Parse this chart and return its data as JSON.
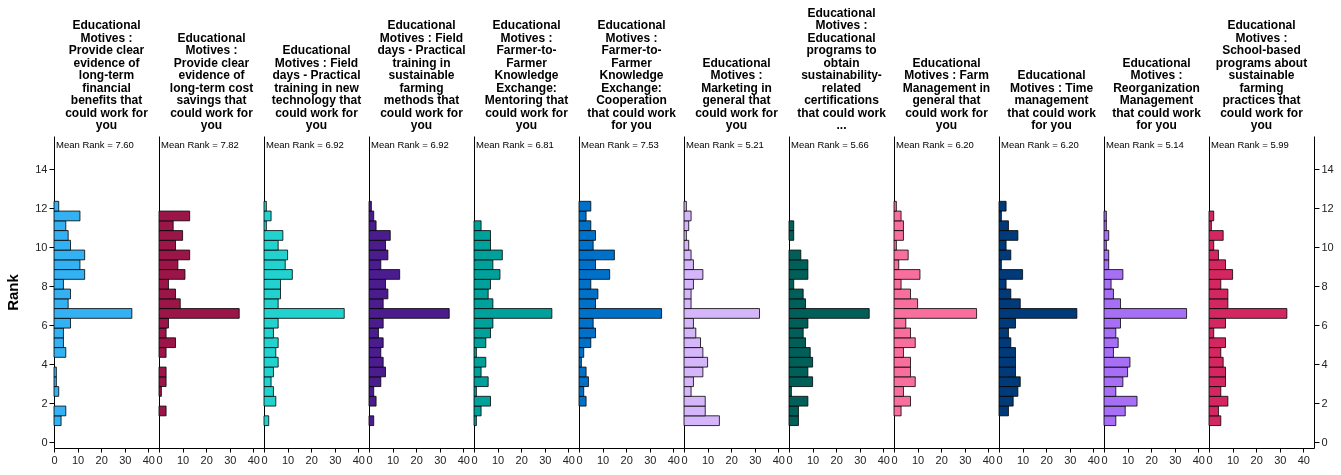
{
  "chart_data": [
    {
      "type": "histogram",
      "orientation": "horizontal",
      "title": "Educational\nMotives :\nProvide clear\nevidence of\nlong-term\nfinancial\nbenefits that\ncould work for\nyou",
      "ylabel": "Rank",
      "annotations": [
        "Mean Rank = 7.60"
      ],
      "color": "#33b1f2",
      "bins": [
        0.85,
        1.35,
        1.85,
        2.35,
        2.85,
        3.35,
        3.85,
        4.35,
        4.85,
        5.35,
        5.85,
        6.35,
        6.85,
        7.35,
        7.85,
        8.35,
        8.85,
        9.35,
        9.85,
        10.35,
        10.85,
        11.35,
        11.85,
        12.35
      ],
      "values": [
        3,
        5,
        0,
        2,
        1,
        1,
        0,
        5,
        4,
        4,
        7,
        33,
        6,
        7,
        4,
        13,
        11,
        13,
        7,
        6,
        5,
        11,
        2
      ],
      "xlim": [
        0,
        44.5
      ],
      "xticks": [
        0,
        10,
        20,
        30,
        40
      ],
      "ylim": [
        -0.3,
        15.7
      ],
      "yticks": [
        0,
        2,
        4,
        6,
        8,
        10,
        12,
        14
      ]
    },
    {
      "type": "histogram",
      "orientation": "horizontal",
      "title": "Educational\nMotives :\nProvide clear\nevidence of\nlong-term cost\nsavings that\ncould work for\nyou",
      "annotations": [
        "Mean Rank = 7.82"
      ],
      "color": "#9c1548",
      "bins": [
        0.85,
        1.35,
        1.85,
        2.35,
        2.85,
        3.35,
        3.85,
        4.35,
        4.85,
        5.35,
        5.85,
        6.35,
        6.85,
        7.35,
        7.85,
        8.35,
        8.85,
        9.35,
        9.85,
        10.35,
        10.85,
        11.35,
        11.85,
        12.35
      ],
      "values": [
        0,
        3,
        0,
        1,
        3,
        3,
        0,
        3,
        7,
        3,
        4,
        34,
        9,
        7,
        4,
        11,
        8,
        13,
        7,
        10,
        6,
        13,
        0
      ],
      "xlim": [
        0,
        44.5
      ],
      "xticks": [
        0,
        10,
        20,
        30,
        40
      ],
      "ylim": [
        -0.3,
        15.7
      ],
      "yticks": [
        0,
        2,
        4,
        6,
        8,
        10,
        12,
        14
      ],
      "tick_labels": "x"
    },
    {
      "type": "histogram",
      "orientation": "horizontal",
      "title": "Educational\nMotives : Field\ndays - Practical\ntraining in new\ntechnology that\ncould work for\nyou",
      "annotations": [
        "Mean Rank = 6.92"
      ],
      "color": "#22d2cf",
      "bins": [
        0.85,
        1.35,
        1.85,
        2.35,
        2.85,
        3.35,
        3.85,
        4.35,
        4.85,
        5.35,
        5.85,
        6.35,
        6.85,
        7.35,
        7.85,
        8.35,
        8.85,
        9.35,
        9.85,
        10.35,
        10.85,
        11.35,
        11.85,
        12.35
      ],
      "values": [
        2,
        0,
        5,
        4,
        3,
        4,
        6,
        5,
        6,
        4,
        6,
        34,
        6,
        7,
        7,
        12,
        9,
        10,
        6,
        8,
        1,
        3,
        1
      ],
      "xlim": [
        0,
        44.5
      ],
      "xticks": [
        0,
        10,
        20,
        30,
        40
      ],
      "ylim": [
        -0.3,
        15.7
      ],
      "yticks": [
        0,
        2,
        4,
        6,
        8,
        10,
        12,
        14
      ],
      "tick_labels": "x"
    },
    {
      "type": "histogram",
      "orientation": "horizontal",
      "title": "Educational\nMotives : Field\ndays - Practical\ntraining in\nsustainable\nfarming\nmethods that\ncould work for\nyou",
      "annotations": [
        "Mean Rank = 6.92"
      ],
      "color": "#4b1c8e",
      "bins": [
        0.85,
        1.35,
        1.85,
        2.35,
        2.85,
        3.35,
        3.85,
        4.35,
        4.85,
        5.35,
        5.85,
        6.35,
        6.85,
        7.35,
        7.85,
        8.35,
        8.85,
        9.35,
        9.85,
        10.35,
        10.85,
        11.35,
        11.85,
        12.35
      ],
      "values": [
        2,
        0,
        3,
        2,
        5,
        7,
        6,
        5,
        6,
        4,
        6,
        34,
        6,
        8,
        7,
        13,
        5,
        8,
        7,
        9,
        3,
        2,
        1
      ],
      "xlim": [
        0,
        44.5
      ],
      "xticks": [
        0,
        10,
        20,
        30,
        40
      ],
      "ylim": [
        -0.3,
        15.7
      ],
      "yticks": [
        0,
        2,
        4,
        6,
        8,
        10,
        12,
        14
      ],
      "tick_labels": "x"
    },
    {
      "type": "histogram",
      "orientation": "horizontal",
      "title": "Educational\nMotives :\nFarmer-to-\nFarmer\nKnowledge\nExchange:\nMentoring that\ncould work for\nyou",
      "annotations": [
        "Mean Rank = 6.81"
      ],
      "color": "#00a19b",
      "bins": [
        0.85,
        1.35,
        1.85,
        2.35,
        2.85,
        3.35,
        3.85,
        4.35,
        4.85,
        5.35,
        5.85,
        6.35,
        6.85,
        7.35,
        7.85,
        8.35,
        8.85,
        9.35,
        9.85,
        10.35,
        10.85,
        11.35,
        11.85,
        12.35
      ],
      "values": [
        1,
        3,
        7,
        1,
        6,
        3,
        5,
        1,
        5,
        7,
        8,
        33,
        8,
        6,
        7,
        11,
        8,
        12,
        7,
        7,
        3,
        0,
        0
      ],
      "xlim": [
        0,
        44.5
      ],
      "xticks": [
        0,
        10,
        20,
        30,
        40
      ],
      "ylim": [
        -0.3,
        15.7
      ],
      "yticks": [
        0,
        2,
        4,
        6,
        8,
        10,
        12,
        14
      ],
      "tick_labels": "x"
    },
    {
      "type": "histogram",
      "orientation": "horizontal",
      "title": "Educational\nMotives :\nFarmer-to-\nFarmer\nKnowledge\nExchange:\nCooperation\nthat could work\nfor you",
      "annotations": [
        "Mean Rank = 7.53"
      ],
      "color": "#0071c9",
      "bins": [
        0.85,
        1.35,
        1.85,
        2.35,
        2.85,
        3.35,
        3.85,
        4.35,
        4.85,
        5.35,
        5.85,
        6.35,
        6.85,
        7.35,
        7.85,
        8.35,
        8.85,
        9.35,
        9.85,
        10.35,
        10.85,
        11.35,
        11.85,
        12.35
      ],
      "values": [
        0,
        0,
        3,
        2,
        4,
        3,
        1,
        2,
        5,
        7,
        6,
        35,
        7,
        8,
        5,
        13,
        7,
        15,
        6,
        7,
        5,
        3,
        5
      ],
      "xlim": [
        0,
        44.5
      ],
      "xticks": [
        0,
        10,
        20,
        30,
        40
      ],
      "ylim": [
        -0.3,
        15.7
      ],
      "yticks": [
        0,
        2,
        4,
        6,
        8,
        10,
        12,
        14
      ],
      "tick_labels": "x"
    },
    {
      "type": "histogram",
      "orientation": "horizontal",
      "title": "Educational\nMotives :\nMarketing in\ngeneral that\ncould work for\nyou",
      "annotations": [
        "Mean Rank = 5.21"
      ],
      "color": "#d5b6fb",
      "bins": [
        0.85,
        1.35,
        1.85,
        2.35,
        2.85,
        3.35,
        3.85,
        4.35,
        4.85,
        5.35,
        5.85,
        6.35,
        6.85,
        7.35,
        7.85,
        8.35,
        8.85,
        9.35,
        9.85,
        10.35,
        10.85,
        11.35,
        11.85,
        12.35
      ],
      "values": [
        15,
        9,
        9,
        3,
        4,
        8,
        10,
        8,
        7,
        5,
        4,
        32,
        3,
        3,
        4,
        8,
        4,
        3,
        2,
        1,
        2,
        3,
        1
      ],
      "xlim": [
        0,
        44.5
      ],
      "xticks": [
        0,
        10,
        20,
        30,
        40
      ],
      "ylim": [
        -0.3,
        15.7
      ],
      "yticks": [
        0,
        2,
        4,
        6,
        8,
        10,
        12,
        14
      ],
      "tick_labels": "x"
    },
    {
      "type": "histogram",
      "orientation": "horizontal",
      "title": "Educational\nMotives :\nEducational\nprograms to\nobtain\nsustainability-\nrelated\ncertifications\nthat could work\n...",
      "annotations": [
        "Mean Rank = 5.66"
      ],
      "color": "#005f59",
      "bins": [
        0.85,
        1.35,
        1.85,
        2.35,
        2.85,
        3.35,
        3.85,
        4.35,
        4.85,
        5.35,
        5.85,
        6.35,
        6.85,
        7.35,
        7.85,
        8.35,
        8.85,
        9.35,
        9.85,
        10.35,
        10.85,
        11.35,
        11.85,
        12.35
      ],
      "values": [
        4,
        4,
        8,
        1,
        10,
        8,
        10,
        9,
        7,
        6,
        8,
        34,
        7,
        6,
        2,
        8,
        8,
        5,
        0,
        2,
        2,
        0,
        0
      ],
      "xlim": [
        0,
        44.5
      ],
      "xticks": [
        0,
        10,
        20,
        30,
        40
      ],
      "ylim": [
        -0.3,
        15.7
      ],
      "yticks": [
        0,
        2,
        4,
        6,
        8,
        10,
        12,
        14
      ],
      "tick_labels": "x"
    },
    {
      "type": "histogram",
      "orientation": "horizontal",
      "title": "Educational\nMotives : Farm\nManagement in\ngeneral that\ncould work for\nyou",
      "annotations": [
        "Mean Rank = 6.20"
      ],
      "color": "#f86f9e",
      "bins": [
        0.85,
        1.35,
        1.85,
        2.35,
        2.85,
        3.35,
        3.85,
        4.35,
        4.85,
        5.35,
        5.85,
        6.35,
        6.85,
        7.35,
        7.85,
        8.35,
        8.85,
        9.35,
        9.85,
        10.35,
        10.85,
        11.35,
        11.85,
        12.35
      ],
      "values": [
        0,
        3,
        7,
        4,
        9,
        7,
        7,
        4,
        9,
        7,
        5,
        35,
        10,
        7,
        3,
        11,
        2,
        6,
        1,
        4,
        4,
        3,
        1
      ],
      "xlim": [
        0,
        44.5
      ],
      "xticks": [
        0,
        10,
        20,
        30,
        40
      ],
      "ylim": [
        -0.3,
        15.7
      ],
      "yticks": [
        0,
        2,
        4,
        6,
        8,
        10,
        12,
        14
      ],
      "tick_labels": "x"
    },
    {
      "type": "histogram",
      "orientation": "horizontal",
      "title": "Educational\nMotives : Time\nmanagement\nthat could work\nfor you",
      "annotations": [
        "Mean Rank = 6.20"
      ],
      "color": "#003a79",
      "bins": [
        0.85,
        1.35,
        1.85,
        2.35,
        2.85,
        3.35,
        3.85,
        4.35,
        4.85,
        5.35,
        5.85,
        6.35,
        6.85,
        7.35,
        7.85,
        8.35,
        8.85,
        9.35,
        9.85,
        10.35,
        10.85,
        11.35,
        11.85,
        12.35
      ],
      "values": [
        0,
        4,
        6,
        8,
        9,
        7,
        7,
        7,
        5,
        4,
        7,
        33,
        9,
        5,
        3,
        10,
        1,
        5,
        3,
        8,
        4,
        1,
        3
      ],
      "xlim": [
        0,
        44.5
      ],
      "xticks": [
        0,
        10,
        20,
        30,
        40
      ],
      "ylim": [
        -0.3,
        15.7
      ],
      "yticks": [
        0,
        2,
        4,
        6,
        8,
        10,
        12,
        14
      ],
      "tick_labels": "x"
    },
    {
      "type": "histogram",
      "orientation": "horizontal",
      "title": "Educational\nMotives :\nReorganization\nManagement\nthat could work\nfor you",
      "annotations": [
        "Mean Rank = 5.14"
      ],
      "color": "#a66ff6",
      "bins": [
        0.85,
        1.35,
        1.85,
        2.35,
        2.85,
        3.35,
        3.85,
        4.35,
        4.85,
        5.35,
        5.85,
        6.35,
        6.85,
        7.35,
        7.85,
        8.35,
        8.85,
        9.35,
        9.85,
        10.35,
        10.85,
        11.35,
        11.85,
        12.35
      ],
      "values": [
        5,
        9,
        14,
        5,
        8,
        10,
        11,
        4,
        6,
        5,
        7,
        35,
        7,
        4,
        3,
        8,
        2,
        2,
        1,
        2,
        1,
        1,
        0
      ],
      "xlim": [
        0,
        44.5
      ],
      "xticks": [
        0,
        10,
        20,
        30,
        40
      ],
      "ylim": [
        -0.3,
        15.7
      ],
      "yticks": [
        0,
        2,
        4,
        6,
        8,
        10,
        12,
        14
      ],
      "tick_labels": "x"
    },
    {
      "type": "histogram",
      "orientation": "horizontal",
      "title": "Educational\nMotives :\nSchool-based\nprograms about\nsustainable\nfarming\npractices that\ncould work for\nyou",
      "annotations": [
        "Mean Rank = 5.99"
      ],
      "color": "#d42762",
      "bins": [
        0.85,
        1.35,
        1.85,
        2.35,
        2.85,
        3.35,
        3.85,
        4.35,
        4.85,
        5.35,
        5.85,
        6.35,
        6.85,
        7.35,
        7.85,
        8.35,
        8.85,
        9.35,
        9.85,
        10.35,
        10.85,
        11.35,
        11.85,
        12.35
      ],
      "values": [
        5,
        4,
        8,
        5,
        7,
        7,
        6,
        5,
        7,
        2,
        7,
        33,
        8,
        8,
        5,
        10,
        7,
        4,
        2,
        6,
        1,
        2,
        0
      ],
      "xlim": [
        0,
        44.5
      ],
      "xticks": [
        0,
        10,
        20,
        30,
        40
      ],
      "ylim": [
        -0.3,
        15.7
      ],
      "yticks": [
        0,
        2,
        4,
        6,
        8,
        10,
        12,
        14
      ]
    }
  ]
}
